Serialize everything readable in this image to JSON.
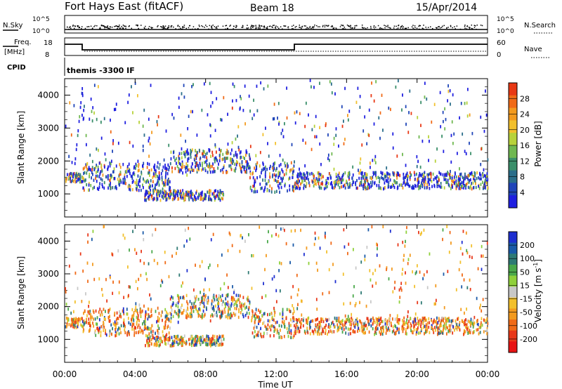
{
  "header": {
    "station": "Fort Hays East (fitACF)",
    "beam": "Beam 18",
    "date": "15/Apr/2014"
  },
  "colors": {
    "axis": "#000000",
    "power_scale": [
      "#1f1fe0",
      "#1f45b8",
      "#2a6e8a",
      "#3a8f6a",
      "#6fb850",
      "#b7d23a",
      "#f2c02c",
      "#f39a1e",
      "#f06a17",
      "#e83814"
    ],
    "velocity_scale": [
      "#1e2fd0",
      "#1a5aa8",
      "#2e7a74",
      "#4aa84a",
      "#8fd03a",
      "#c8c8c8",
      "#f2c02c",
      "#f39a1e",
      "#f06a17",
      "#e8381a",
      "#e81414"
    ]
  },
  "top_panels": {
    "nsky_label": "N.Sky",
    "nsky_ticks": [
      "10^5",
      "10^0"
    ],
    "nsearch_label": "N.Search",
    "nsearch_ticks": [
      "10^5",
      "10^0"
    ],
    "freq_label_1": "Freq.",
    "freq_label_2": "[MHz]",
    "freq_ticks": [
      "18",
      "8"
    ],
    "nave_label": "Nave",
    "nave_ticks": [
      "60",
      "0"
    ],
    "cpid_label": "CPID",
    "cpid_text": "themis -3300 IF"
  },
  "chart_data": [
    {
      "type": "scatter",
      "title": "Power [dB]",
      "ylabel": "Slant Range [km]",
      "xlabel": "Time UT",
      "x_ticks": [
        "00:00",
        "04:00",
        "08:00",
        "12:00",
        "16:00",
        "20:00",
        "00:00"
      ],
      "y_ticks": [
        "1000",
        "2000",
        "3000",
        "4000"
      ],
      "ylim": [
        300,
        4500
      ],
      "xlim_hours": [
        0,
        24
      ],
      "colorbar_label": "Power [dB]",
      "colorbar_ticks": [
        "4",
        "8",
        "12",
        "16",
        "20",
        "24",
        "28"
      ],
      "series_desc": [
        {
          "t": [
            0,
            1
          ],
          "range": [
            1400,
            1700
          ]
        },
        {
          "t": [
            1,
            6
          ],
          "range": [
            1150,
            2000
          ]
        },
        {
          "t": [
            6,
            10.5
          ],
          "range": [
            1700,
            2400
          ]
        },
        {
          "t": [
            10.5,
            13
          ],
          "range": [
            1100,
            2000
          ]
        },
        {
          "t": [
            13,
            24
          ],
          "range": [
            1200,
            1700
          ]
        },
        {
          "t": [
            4.5,
            9
          ],
          "range": [
            850,
            1150
          ]
        }
      ]
    },
    {
      "type": "scatter",
      "title": "Velocity [m s-1]",
      "ylabel": "Slant Range [km]",
      "xlabel": "Time UT",
      "x_ticks": [
        "00:00",
        "04:00",
        "08:00",
        "12:00",
        "16:00",
        "20:00",
        "00:00"
      ],
      "y_ticks": [
        "1000",
        "2000",
        "3000",
        "4000"
      ],
      "ylim": [
        300,
        4500
      ],
      "xlim_hours": [
        0,
        24
      ],
      "colorbar_label": "Velocity [m s",
      "colorbar_label_sup": "-1",
      "colorbar_label_end": "]",
      "colorbar_ticks": [
        "200",
        "100",
        "50",
        "15",
        "-15",
        "-50",
        "-100",
        "-200"
      ]
    }
  ]
}
